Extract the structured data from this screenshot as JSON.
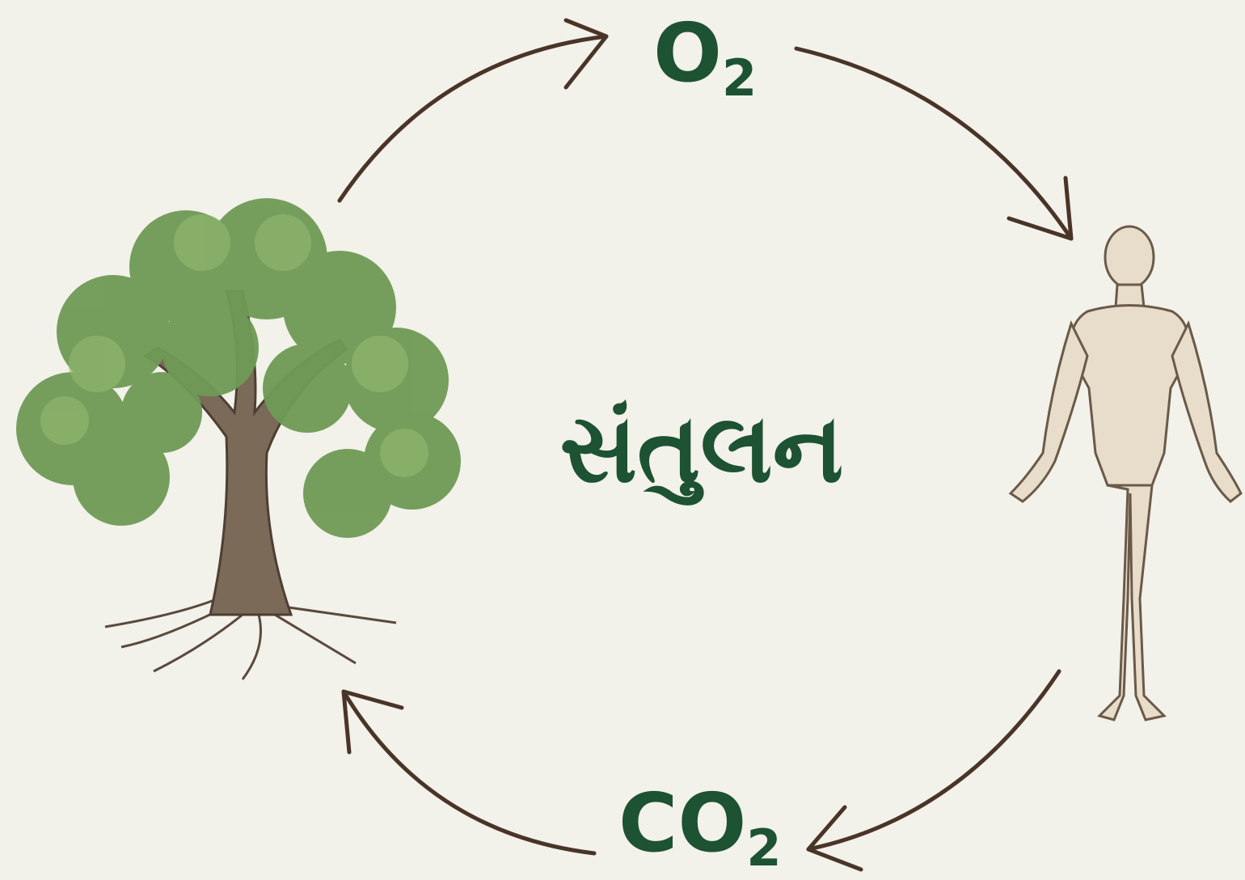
{
  "labels": {
    "oxygen": {
      "symbol": "O",
      "subscript": "2"
    },
    "carbon_dioxide": {
      "symbol": "CO",
      "subscript": "2"
    },
    "center": "સંતુલન"
  }
}
